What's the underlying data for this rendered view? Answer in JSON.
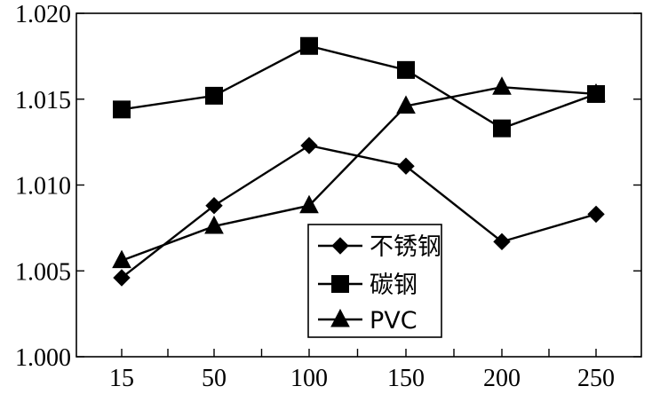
{
  "chart_data": {
    "type": "line",
    "title": "",
    "xlabel": "",
    "ylabel": "",
    "categories": [
      "15",
      "50",
      "100",
      "150",
      "200",
      "250"
    ],
    "x": [
      15,
      50,
      100,
      150,
      200,
      250
    ],
    "yticks": [
      "1.000",
      "1.005",
      "1.010",
      "1.015",
      "1.020"
    ],
    "ylim": [
      1.0,
      1.02
    ],
    "grid": false,
    "legend_position": "bottom-center",
    "series": [
      {
        "name": "不锈钢",
        "marker": "diamond",
        "values": [
          1.0046,
          1.0088,
          1.0123,
          1.0111,
          1.0067,
          1.0083
        ]
      },
      {
        "name": "碳钢",
        "marker": "square",
        "values": [
          1.0144,
          1.0152,
          1.0181,
          1.0167,
          1.0133,
          1.0153
        ]
      },
      {
        "name": "PVC",
        "marker": "triangle",
        "values": [
          1.0056,
          1.0076,
          1.0088,
          1.0146,
          1.0157,
          1.0153
        ]
      }
    ]
  }
}
